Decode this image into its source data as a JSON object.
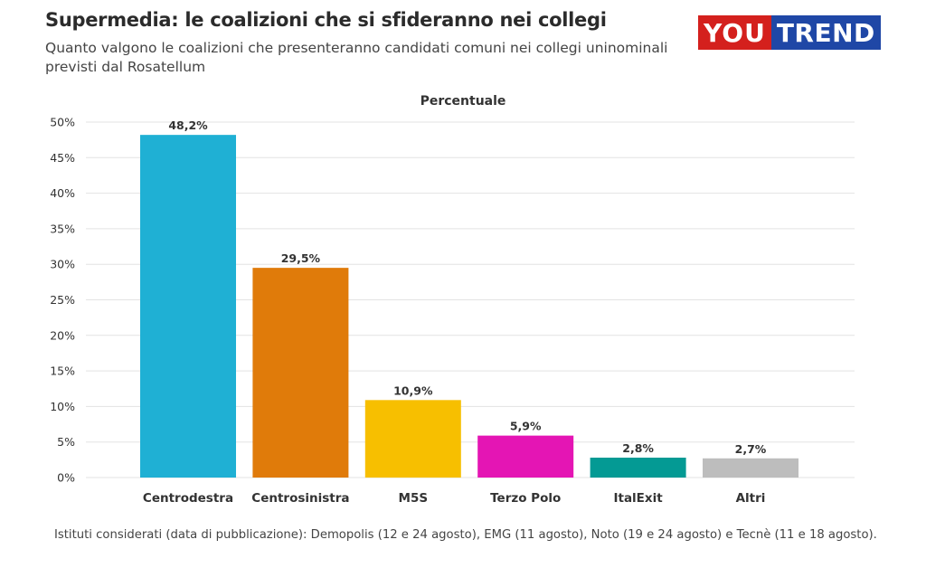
{
  "header": {
    "title": "Supermedia: le coalizioni che si sfideranno nei collegi",
    "subtitle": "Quanto valgono le coalizioni che presenteranno candidati comuni nei collegi uninominali previsti dal Rosatellum"
  },
  "logo": {
    "part1": "YOU",
    "part2": "TREND"
  },
  "chart_data": {
    "type": "bar",
    "title": "Percentuale",
    "categories": [
      "Centrodestra",
      "Centrosinistra",
      "M5S",
      "Terzo Polo",
      "ItalExit",
      "Altri"
    ],
    "values": [
      48.2,
      29.5,
      10.9,
      5.9,
      2.8,
      2.7
    ],
    "data_labels": [
      "48,2%",
      "29,5%",
      "10,9%",
      "5,9%",
      "2,8%",
      "2,7%"
    ],
    "colors": [
      "#1fb0d4",
      "#e07b0a",
      "#f7bf00",
      "#e415b4",
      "#049a94",
      "#bdbdbd"
    ],
    "ylim": [
      0,
      50
    ],
    "yticks": [
      0,
      5,
      10,
      15,
      20,
      25,
      30,
      35,
      40,
      45,
      50
    ],
    "ytick_labels": [
      "0%",
      "5%",
      "10%",
      "15%",
      "20%",
      "25%",
      "30%",
      "35%",
      "40%",
      "45%",
      "50%"
    ],
    "xlabel": "",
    "ylabel": "",
    "grid": true,
    "legend": "none"
  },
  "footer": {
    "source": "Istituti considerati (data di pubblicazione): Demopolis (12 e 24 agosto), EMG (11 agosto), Noto (19 e 24 agosto) e Tecnè (11 e 18 agosto)."
  }
}
